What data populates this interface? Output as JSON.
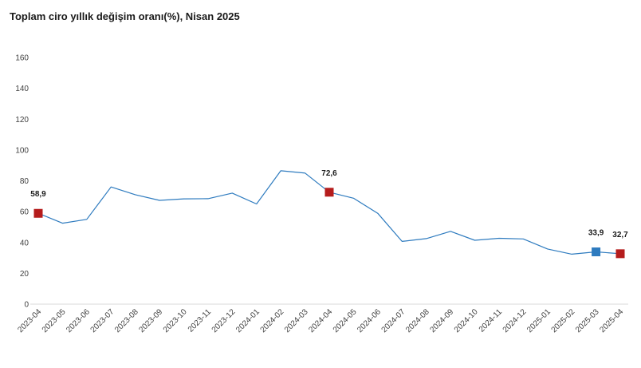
{
  "chart_data": {
    "type": "line",
    "title": "Toplam ciro yıllık değişim oranı(%), Nisan 2025",
    "xlabel": "",
    "ylabel": "",
    "ylim": [
      0,
      160
    ],
    "yticks": [
      0,
      20,
      40,
      60,
      80,
      100,
      120,
      140,
      160
    ],
    "grid": false,
    "categories": [
      "2023-04",
      "2023-05",
      "2023-06",
      "2023-07",
      "2023-08",
      "2023-09",
      "2023-10",
      "2023-11",
      "2023-12",
      "2024-01",
      "2024-02",
      "2024-03",
      "2024-04",
      "2024-05",
      "2024-06",
      "2024-07",
      "2024-08",
      "2024-09",
      "2024-10",
      "2024-11",
      "2024-12",
      "2025-01",
      "2025-02",
      "2025-03",
      "2025-04"
    ],
    "series": [
      {
        "values": [
          58.9,
          52.5,
          55,
          76,
          71,
          67.3,
          68.3,
          68.4,
          72,
          65,
          86.5,
          85,
          72.6,
          68.7,
          58.9,
          40.7,
          42.5,
          47.2,
          41.4,
          42.7,
          42.3,
          35.8,
          32.4,
          33.9,
          32.7
        ],
        "color": "#2e7bbf"
      }
    ],
    "annotations": [
      {
        "index": 0,
        "label": "58,9",
        "marker_color": "#b51c1c"
      },
      {
        "index": 12,
        "label": "72,6",
        "marker_color": "#b51c1c"
      },
      {
        "index": 23,
        "label": "33,9",
        "marker_color": "#2e7bbf"
      },
      {
        "index": 24,
        "label": "32,7",
        "marker_color": "#b51c1c"
      }
    ]
  }
}
